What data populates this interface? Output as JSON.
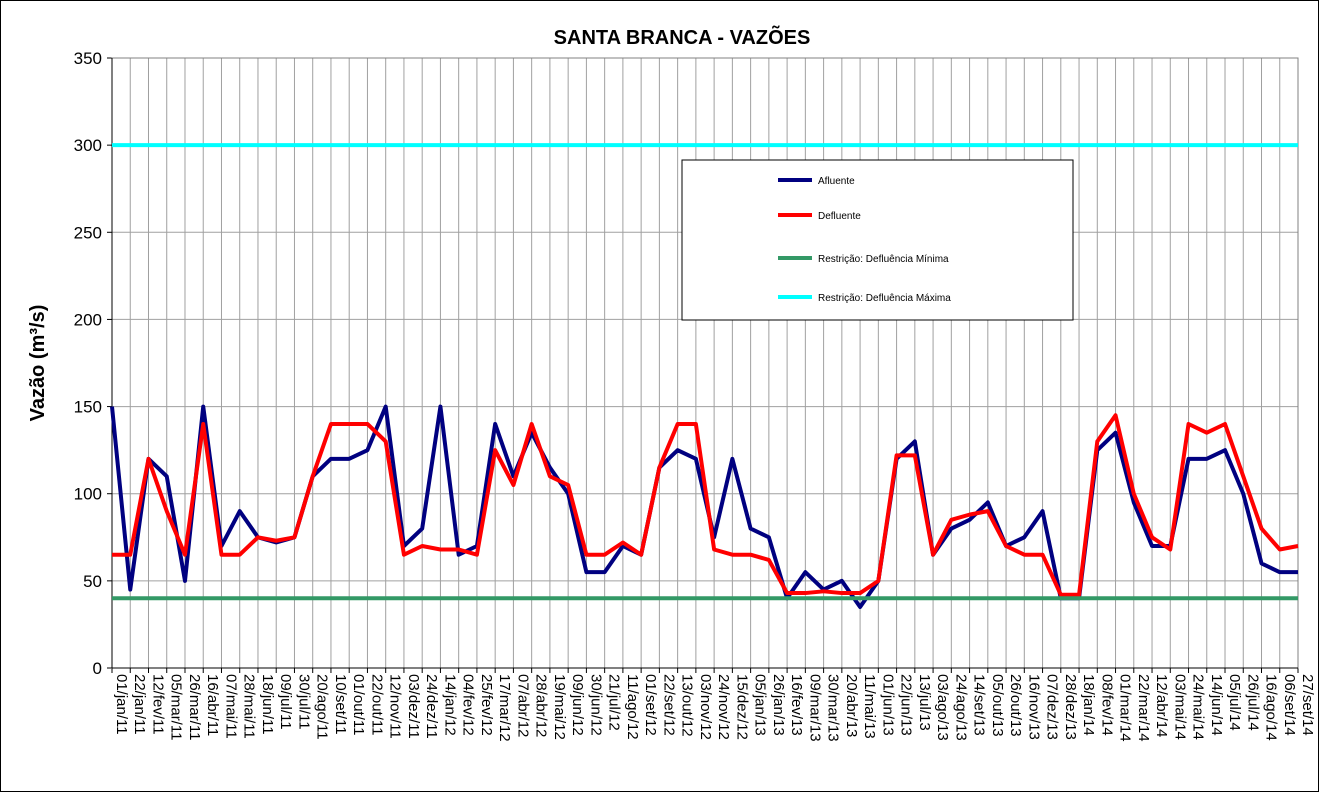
{
  "chart_data": {
    "type": "line",
    "title": "SANTA BRANCA - VAZÕES",
    "y_label": "Vazão (m³/s)",
    "categories": [
      "01/jan/11",
      "22/jan/11",
      "12/fev/11",
      "05/mar/11",
      "26/mar/11",
      "16/abr/11",
      "07/mai/11",
      "28/mai/11",
      "18/jun/11",
      "09/jul/11",
      "30/jul/11",
      "20/ago/11",
      "10/set/11",
      "01/out/11",
      "22/out/11",
      "12/nov/11",
      "03/dez/11",
      "24/dez/11",
      "14/jan/12",
      "04/fev/12",
      "25/fev/12",
      "17/mar/12",
      "07/abr/12",
      "28/abr/12",
      "19/mai/12",
      "09/jun/12",
      "30/jun/12",
      "21/jul/12",
      "11/ago/12",
      "01/set/12",
      "22/set/12",
      "13/out/12",
      "03/nov/12",
      "24/nov/12",
      "15/dez/12",
      "05/jan/13",
      "26/jan/13",
      "16/fev/13",
      "09/mar/13",
      "30/mar/13",
      "20/abr/13",
      "11/mai/13",
      "01/jun/13",
      "22/jun/13",
      "13/jul/13",
      "03/ago/13",
      "24/ago/13",
      "14/set/13",
      "05/out/13",
      "26/out/13",
      "16/nov/13",
      "07/dez/13",
      "28/dez/13",
      "18/jan/14",
      "08/fev/14",
      "01/mar/14",
      "22/mar/14",
      "12/abr/14",
      "03/mai/14",
      "24/mai/14",
      "14/jun/14",
      "05/jul/14",
      "26/jul/14",
      "16/ago/14",
      "06/set/14",
      "27/set/14"
    ],
    "series": [
      {
        "name": "Afluente",
        "color": "#000080",
        "values": [
          150,
          45,
          120,
          110,
          50,
          150,
          70,
          90,
          75,
          72,
          75,
          110,
          120,
          120,
          125,
          150,
          70,
          80,
          150,
          65,
          70,
          140,
          110,
          135,
          115,
          100,
          55,
          55,
          70,
          65,
          115,
          125,
          120,
          75,
          120,
          80,
          75,
          40,
          55,
          45,
          50,
          35,
          50,
          120,
          130,
          65,
          80,
          85,
          95,
          70,
          75,
          90,
          40,
          40,
          125,
          135,
          95,
          70,
          70,
          120,
          120,
          125,
          100,
          60,
          55,
          55
        ]
      },
      {
        "name": "Defluente",
        "color": "#ff0000",
        "values": [
          65,
          65,
          120,
          90,
          65,
          140,
          65,
          65,
          75,
          73,
          75,
          110,
          140,
          140,
          140,
          130,
          65,
          70,
          68,
          68,
          65,
          125,
          105,
          140,
          110,
          105,
          65,
          65,
          72,
          65,
          115,
          140,
          140,
          68,
          65,
          65,
          62,
          43,
          43,
          44,
          43,
          43,
          50,
          122,
          122,
          65,
          85,
          88,
          90,
          70,
          65,
          65,
          42,
          42,
          130,
          145,
          100,
          75,
          68,
          140,
          135,
          140,
          110,
          80,
          68,
          70
        ]
      },
      {
        "name": "Restrição: Defluência Mínima",
        "color": "#339966",
        "values": [
          40,
          40,
          40,
          40,
          40,
          40,
          40,
          40,
          40,
          40,
          40,
          40,
          40,
          40,
          40,
          40,
          40,
          40,
          40,
          40,
          40,
          40,
          40,
          40,
          40,
          40,
          40,
          40,
          40,
          40,
          40,
          40,
          40,
          40,
          40,
          40,
          40,
          40,
          40,
          40,
          40,
          40,
          40,
          40,
          40,
          40,
          40,
          40,
          40,
          40,
          40,
          40,
          40,
          40,
          40,
          40,
          40,
          40,
          40,
          40,
          40,
          40,
          40,
          40,
          40,
          40
        ]
      },
      {
        "name": "Restrição: Defluência Máxima",
        "color": "#00ffff",
        "values": [
          300,
          300,
          300,
          300,
          300,
          300,
          300,
          300,
          300,
          300,
          300,
          300,
          300,
          300,
          300,
          300,
          300,
          300,
          300,
          300,
          300,
          300,
          300,
          300,
          300,
          300,
          300,
          300,
          300,
          300,
          300,
          300,
          300,
          300,
          300,
          300,
          300,
          300,
          300,
          300,
          300,
          300,
          300,
          300,
          300,
          300,
          300,
          300,
          300,
          300,
          300,
          300,
          300,
          300,
          300,
          300,
          300,
          300,
          300,
          300,
          300,
          300,
          300,
          300,
          300,
          300
        ]
      }
    ],
    "ylim": [
      0,
      350
    ],
    "yticks": [
      0,
      50,
      100,
      150,
      200,
      250,
      300,
      350
    ],
    "grid": true
  }
}
